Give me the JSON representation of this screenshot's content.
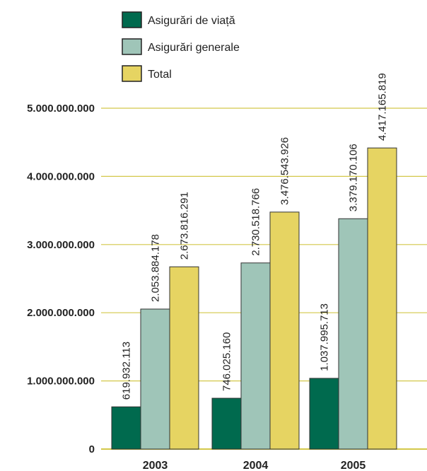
{
  "chart_data": {
    "type": "bar",
    "title": "",
    "xlabel": "",
    "ylabel": "",
    "categories": [
      "2003",
      "2004",
      "2005"
    ],
    "series": [
      {
        "name": "Asigurări de viață",
        "color": "#006a4e",
        "values": [
          619932113,
          746025160,
          1037995713
        ],
        "labels": [
          "619.932.113",
          "746.025.160",
          "1.037.995.713"
        ]
      },
      {
        "name": "Asigurări generale",
        "color": "#9fc5b8",
        "values": [
          2053884178,
          2730518766,
          3379170106
        ],
        "labels": [
          "2.053.884.178",
          "2.730.518.766",
          "3.379.170.106"
        ]
      },
      {
        "name": "Total",
        "color": "#e6d462",
        "values": [
          2673816291,
          3476543926,
          4417165819
        ],
        "labels": [
          "2.673.816.291",
          "3.476.543.926",
          "4.417.165.819"
        ]
      }
    ],
    "yticks": [
      0,
      1000000000,
      2000000000,
      3000000000,
      4000000000,
      5000000000
    ],
    "ytick_labels": [
      "0",
      "1.000.000.000",
      "2.000.000.000",
      "3.000.000.000",
      "4.000.000.000",
      "5.000.000.000"
    ],
    "ylim": [
      0,
      5000000000
    ],
    "grid": true,
    "grid_color": "#d4c84a",
    "legend_position": "top"
  }
}
